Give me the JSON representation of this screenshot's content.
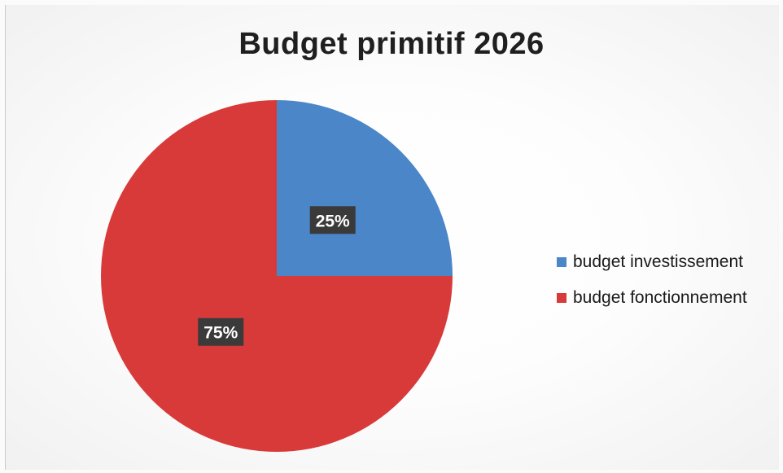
{
  "chart_data": {
    "type": "pie",
    "title": "Budget primitif 2026",
    "categories": [
      "budget investissement",
      "budget fonctionnement"
    ],
    "values": [
      25,
      75
    ],
    "labels": [
      "25%",
      "75%"
    ],
    "colors": [
      "#4a86c8",
      "#d83a3a"
    ],
    "legend_position": "right"
  }
}
